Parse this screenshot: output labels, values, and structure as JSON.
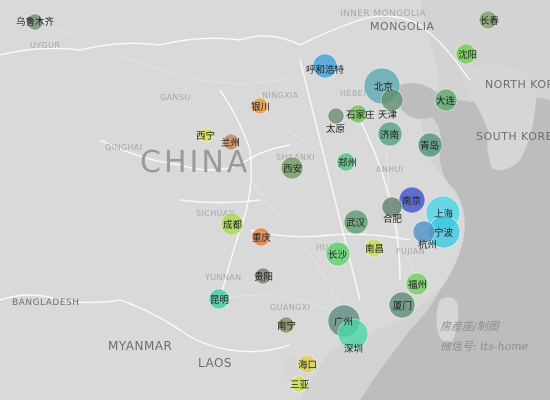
{
  "map": {
    "big_label": "CHINA",
    "countries": [
      {
        "id": "inner-mongolia",
        "text": "INNER MONGOLIA"
      },
      {
        "id": "mongolia",
        "text": "MONGOLIA"
      },
      {
        "id": "north-korea",
        "text": "NORTH KOREA"
      },
      {
        "id": "south-korea",
        "text": "SOUTH KOREA"
      },
      {
        "id": "myanmar",
        "text": "MYANMAR"
      },
      {
        "id": "laos",
        "text": "LAOS"
      },
      {
        "id": "bangladesh",
        "text": "BANGLADESH"
      }
    ],
    "regions": [
      {
        "id": "uygur",
        "text": "UYGUR"
      },
      {
        "id": "gansu",
        "text": "GANSU"
      },
      {
        "id": "qinghai",
        "text": "QINGHAI"
      },
      {
        "id": "ningxia",
        "text": "NINGXIA"
      },
      {
        "id": "shaanxi",
        "text": "SHAANXI"
      },
      {
        "id": "sichuan",
        "text": "SICHUAN"
      },
      {
        "id": "yunnan",
        "text": "YUNNAN"
      },
      {
        "id": "hebei",
        "text": "HEBEI"
      },
      {
        "id": "anhui",
        "text": "ANHUI"
      },
      {
        "id": "hunan",
        "text": "HUNAN"
      },
      {
        "id": "fujian",
        "text": "FUJIAN"
      },
      {
        "id": "guangxi",
        "text": "GUANGXI"
      }
    ],
    "credit_line1": "房産座/制图",
    "credit_line2": "微信号: its-home",
    "colors": {
      "blue": "#3aa0d6",
      "blue_dark": "#3b4fc8",
      "cyan": "#44d6e8",
      "green": "#58c94a",
      "teal": "#37c9a4",
      "grey_green": "#6c8a72",
      "orange": "#e88a3a",
      "lime": "#b6dc3a"
    }
  },
  "cities": [
    {
      "name": "乌鲁木齐",
      "color": "#6c8a72"
    },
    {
      "name": "长春",
      "color": "#7fa06c"
    },
    {
      "name": "沈阳",
      "color": "#6fcf4a"
    },
    {
      "name": "呼和浩特",
      "color": "#3aa0d6"
    },
    {
      "name": "北京",
      "color": "#5aa7b0"
    },
    {
      "name": "大连",
      "color": "#58a86a"
    },
    {
      "name": "银川",
      "color": "#e8963a"
    },
    {
      "name": "石家庄",
      "color": "#6cc24a"
    },
    {
      "name": "天津",
      "color": "#5e8f6a"
    },
    {
      "name": "太原",
      "color": "#6a8a72"
    },
    {
      "name": "西宁",
      "color": "#d7e04a"
    },
    {
      "name": "兰州",
      "color": "#c4845a"
    },
    {
      "name": "济南",
      "color": "#4fa07a"
    },
    {
      "name": "青岛",
      "color": "#4e8f7a"
    },
    {
      "name": "西安",
      "color": "#6e9a5e"
    },
    {
      "name": "郑州",
      "color": "#4cc27a"
    },
    {
      "name": "南京",
      "color": "#3b4fc8"
    },
    {
      "name": "合肥",
      "color": "#5f7d6a"
    },
    {
      "name": "上海",
      "color": "#44d6e8"
    },
    {
      "name": "宁波",
      "color": "#3cc8e0"
    },
    {
      "name": "成都",
      "color": "#a6d84a"
    },
    {
      "name": "武汉",
      "color": "#5a9a6a"
    },
    {
      "name": "杭州",
      "color": "#4b90c8"
    },
    {
      "name": "重庆",
      "color": "#e07a3a"
    },
    {
      "name": "长沙",
      "color": "#58d16a"
    },
    {
      "name": "南昌",
      "color": "#c4e04a"
    },
    {
      "name": "贵阳",
      "color": "#7a7a6a"
    },
    {
      "name": "福州",
      "color": "#6fd05a"
    },
    {
      "name": "昆明",
      "color": "#3fc9a4"
    },
    {
      "name": "厦门",
      "color": "#5a8a72"
    },
    {
      "name": "南宁",
      "color": "#7a8a5a"
    },
    {
      "name": "广州",
      "color": "#5a8a80"
    },
    {
      "name": "深圳",
      "color": "#4ad6a8"
    },
    {
      "name": "海口",
      "color": "#e0d04a"
    },
    {
      "name": "三亚",
      "color": "#cfe04a"
    }
  ]
}
